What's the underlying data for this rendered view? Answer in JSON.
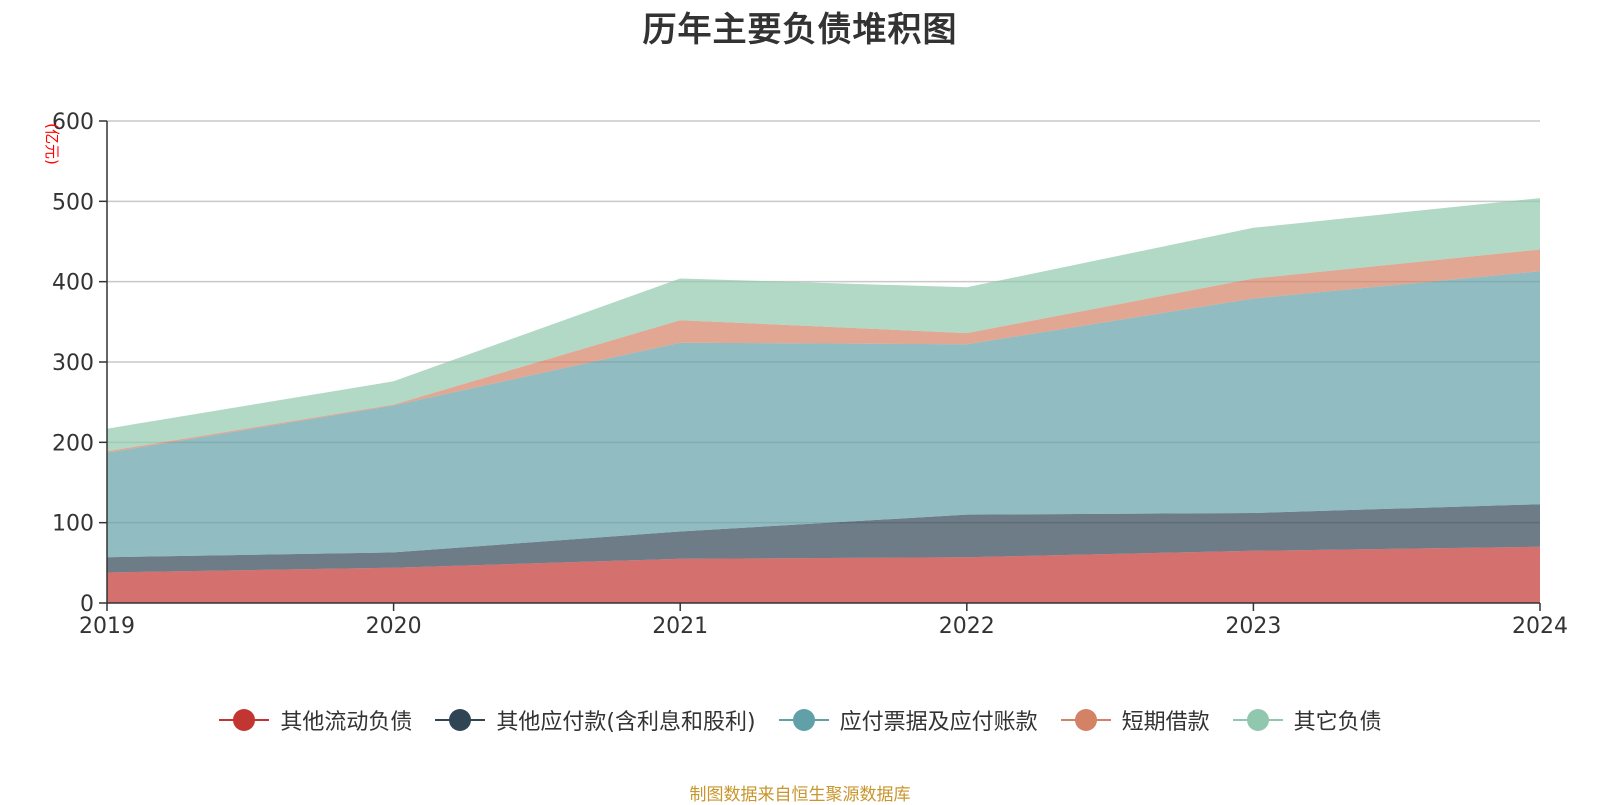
{
  "chart_data": {
    "type": "area",
    "stacked": true,
    "title": "历年主要负债堆积图",
    "ylabel": "(亿元)",
    "xlabel": "",
    "x": [
      "2019",
      "2020",
      "2021",
      "2022",
      "2023",
      "2024"
    ],
    "ylim": [
      0,
      600
    ],
    "yticks": [
      "0",
      "100",
      "200",
      "300",
      "400",
      "500",
      "600"
    ],
    "grid": true,
    "legend_position": "bottom",
    "series": [
      {
        "name": "其他流动负债",
        "color": "#c23531",
        "values": [
          38,
          44,
          55,
          57,
          65,
          70
        ]
      },
      {
        "name": "其他应付款(含利息和股利)",
        "color": "#2f4554",
        "values": [
          19,
          19,
          34,
          53,
          47,
          53
        ]
      },
      {
        "name": "应付票据及应付账款",
        "color": "#61a0a8",
        "values": [
          130,
          183,
          235,
          212,
          267,
          290
        ]
      },
      {
        "name": "短期借款",
        "color": "#d48265",
        "values": [
          2,
          1,
          28,
          14,
          25,
          27
        ]
      },
      {
        "name": "其它负债",
        "color": "#91c7ae",
        "values": [
          28,
          29,
          52,
          57,
          63,
          64
        ]
      }
    ]
  },
  "source_note": "制图数据来自恒生聚源数据库"
}
